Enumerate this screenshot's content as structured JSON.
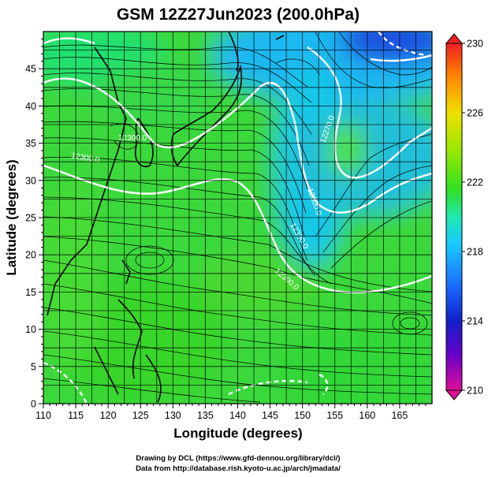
{
  "title": "GSM 12Z27Jun2023 (200.0hPa)",
  "xlabel": "Longitude (degrees)",
  "ylabel": "Latitude  (degrees)",
  "xticks": [
    "110",
    "115",
    "120",
    "125",
    "130",
    "135",
    "140",
    "145",
    "150",
    "155",
    "160",
    "165"
  ],
  "yticks": [
    "0",
    "5",
    "10",
    "15",
    "20",
    "25",
    "30",
    "35",
    "40",
    "45"
  ],
  "colorbar": {
    "labels": [
      "230",
      "226",
      "222",
      "218",
      "214",
      "210"
    ],
    "min": 210,
    "max": 230,
    "colors": [
      "#e0109a",
      "#6a00c8",
      "#1020c8",
      "#1a6aff",
      "#18c8ff",
      "#20e8b0",
      "#30e020",
      "#a0e800",
      "#f0e000",
      "#ff8a00",
      "#f02020"
    ]
  },
  "contour_labels": [
    "12300.0",
    "12300.0",
    "12270.0",
    "12300.0",
    "12330.0",
    "12300.0"
  ],
  "credit_line1": "Drawing by DCL (https://www.gfd-dennou.org/library/dcl/)",
  "credit_line2": "Data from http://database.rish.kyoto-u.ac.jp/arch/jmadata/",
  "chart_data": {
    "type": "map",
    "field": "temperature-colored shading with geopotential height contours and wind streamlines",
    "level": "200.0hPa",
    "xlim": [
      110,
      170
    ],
    "ylim": [
      0,
      50
    ],
    "color_range": [
      210,
      230
    ],
    "contour_levels": [
      12270.0,
      12300.0,
      12330.0
    ]
  }
}
